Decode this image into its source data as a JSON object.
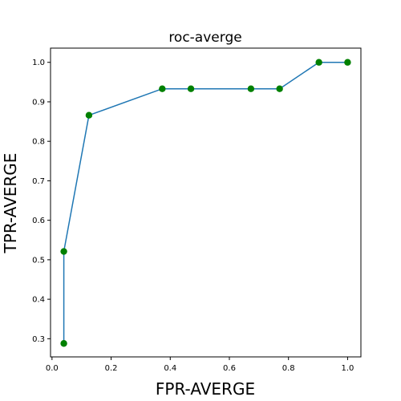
{
  "chart_data": {
    "type": "line",
    "title": "roc-averge",
    "xlabel": "FPR-AVERGE",
    "ylabel": "TPR-AVERGE",
    "xlim": [
      -0.005,
      1.045
    ],
    "ylim": [
      0.254,
      1.036
    ],
    "xticks": [
      0.0,
      0.2,
      0.4,
      0.6,
      0.8,
      1.0
    ],
    "xtick_labels": [
      "0.0",
      "0.2",
      "0.4",
      "0.6",
      "0.8",
      "1.0"
    ],
    "yticks": [
      0.3,
      0.4,
      0.5,
      0.6,
      0.7,
      0.8,
      0.9,
      1.0
    ],
    "ytick_labels": [
      "0.3",
      "0.4",
      "0.5",
      "0.6",
      "0.7",
      "0.8",
      "0.9",
      "1.0"
    ],
    "grid": false,
    "series": [
      {
        "x": [
          0.04,
          0.04,
          0.125,
          0.373,
          0.47,
          0.673,
          0.77,
          0.903,
          1.0
        ],
        "y": [
          0.288,
          0.521,
          0.866,
          0.933,
          0.933,
          0.933,
          0.933,
          1.0,
          1.0
        ],
        "line_color": "#1f77b4",
        "marker_color": "#008000"
      }
    ]
  }
}
